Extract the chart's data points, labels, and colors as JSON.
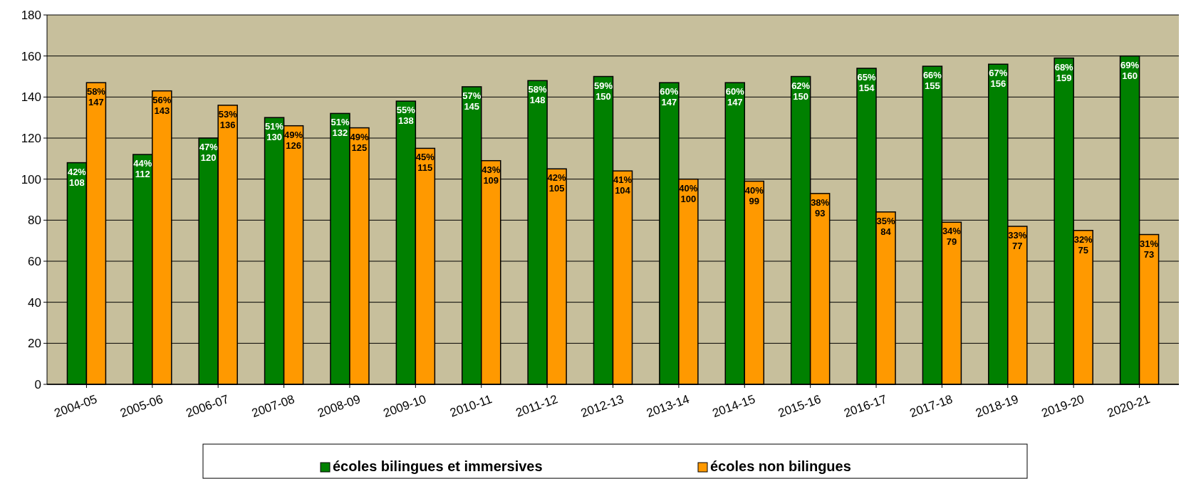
{
  "chart_data": {
    "type": "bar",
    "categories": [
      "2004-05",
      "2005-06",
      "2006-07",
      "2007-08",
      "2008-09",
      "2009-10",
      "2010-11",
      "2011-12",
      "2012-13",
      "2013-14",
      "2014-15",
      "2015-16",
      "2016-17",
      "2017-18",
      "2018-19",
      "2019-20",
      "2020-21"
    ],
    "series": [
      {
        "name": "écoles bilingues et immersives",
        "color": "#008000",
        "values": [
          108,
          112,
          120,
          130,
          132,
          138,
          145,
          148,
          150,
          147,
          147,
          150,
          154,
          155,
          156,
          159,
          160
        ],
        "value_labels": [
          "42%\n108",
          "44%\n112",
          "47%\n120",
          "51%\n130",
          "51%\n132",
          "55%\n138",
          "57%\n145",
          "58%\n148",
          "59%\n150",
          "60%\n147",
          "60%\n147",
          "62%\n150",
          "65%\n154",
          "66%\n155",
          "67%\n156",
          "68%\n159",
          "69%\n160"
        ]
      },
      {
        "name": "écoles non bilingues",
        "color": "#ff9900",
        "values": [
          147,
          143,
          136,
          126,
          125,
          115,
          109,
          105,
          104,
          100,
          99,
          93,
          84,
          79,
          77,
          75,
          73
        ],
        "value_labels": [
          "58%\n147",
          "56%\n143",
          "53%\n136",
          "49%\n126",
          "49%\n125",
          "45%\n115",
          "43%\n109",
          "42%\n105",
          "41%\n104",
          "40%\n100",
          "40%\n99",
          "38%\n93",
          "35%\n84",
          "34%\n79",
          "33%\n77",
          "32%\n75",
          "31%\n73"
        ]
      }
    ],
    "ylim": [
      0,
      180
    ],
    "yticks": [
      0,
      20,
      40,
      60,
      80,
      100,
      120,
      140,
      160,
      180
    ],
    "grid": "y",
    "legend": "bottom"
  }
}
